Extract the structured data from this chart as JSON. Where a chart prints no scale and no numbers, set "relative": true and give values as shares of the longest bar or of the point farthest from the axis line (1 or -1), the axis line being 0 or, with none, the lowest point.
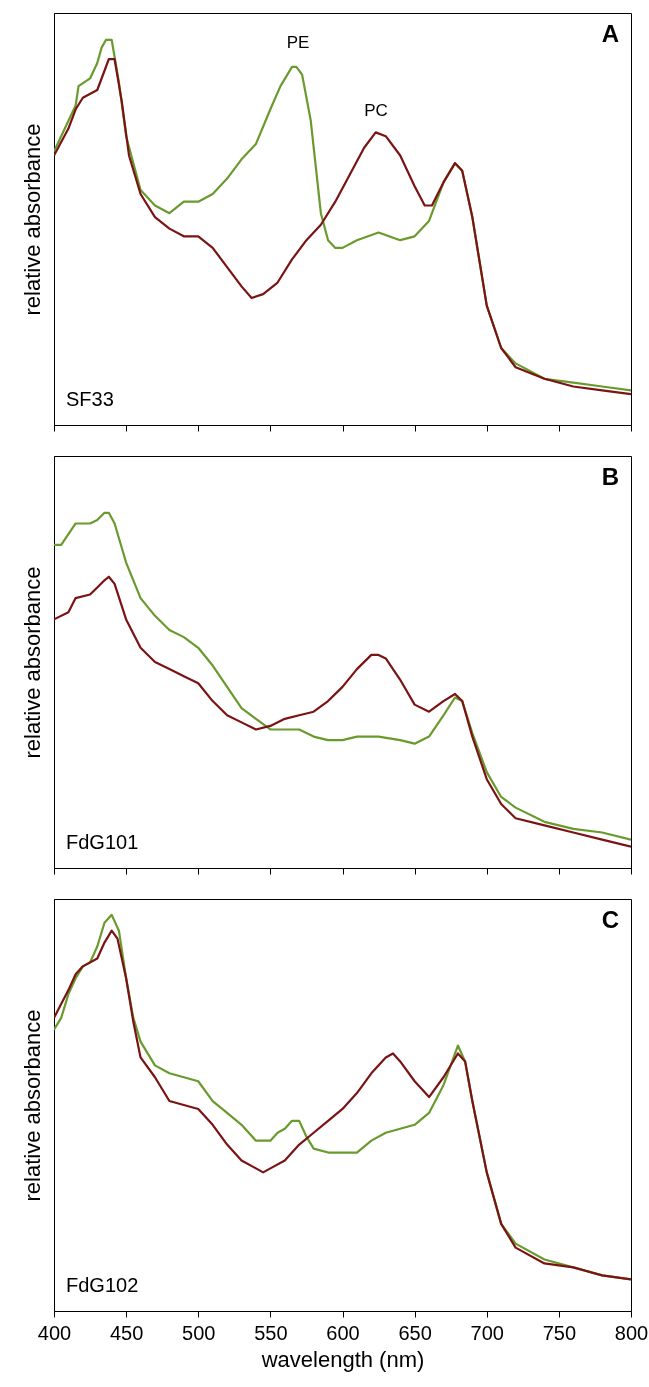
{
  "chart_data": [
    {
      "type": "line",
      "relative": true,
      "ylabel": "relative absorbance",
      "xlim": [
        400,
        800
      ],
      "xticks": [
        400,
        450,
        500,
        550,
        600,
        650,
        700,
        750,
        800
      ],
      "tick_labels": false,
      "legend": false,
      "grid": false,
      "marker": "none",
      "line_style": "solid",
      "annotations": [
        "A",
        "SF33",
        "PE",
        "PC"
      ],
      "series": [
        {
          "color": "#6a9a2e",
          "x": [
            400,
            410,
            415,
            417,
            425,
            430,
            433,
            436,
            440,
            445,
            450,
            460,
            470,
            480,
            490,
            500,
            510,
            520,
            530,
            540,
            550,
            557,
            565,
            568,
            572,
            578,
            585,
            590,
            595,
            600,
            610,
            625,
            640,
            650,
            660,
            670,
            678,
            683,
            690,
            700,
            710,
            720,
            740,
            760,
            780,
            800
          ],
          "values": [
            0.71,
            0.79,
            0.83,
            0.88,
            0.9,
            0.94,
            0.98,
            1.0,
            1.0,
            0.89,
            0.75,
            0.61,
            0.57,
            0.55,
            0.58,
            0.58,
            0.6,
            0.64,
            0.69,
            0.73,
            0.82,
            0.88,
            0.93,
            0.93,
            0.91,
            0.79,
            0.55,
            0.48,
            0.46,
            0.46,
            0.48,
            0.5,
            0.48,
            0.49,
            0.53,
            0.63,
            0.68,
            0.66,
            0.54,
            0.31,
            0.2,
            0.16,
            0.12,
            0.11,
            0.1,
            0.09
          ]
        },
        {
          "color": "#7a1414",
          "x": [
            400,
            410,
            415,
            420,
            430,
            435,
            438,
            442,
            447,
            452,
            460,
            470,
            480,
            490,
            500,
            510,
            520,
            530,
            537,
            545,
            555,
            565,
            575,
            585,
            595,
            605,
            615,
            623,
            630,
            640,
            650,
            657,
            662,
            670,
            678,
            683,
            690,
            700,
            710,
            720,
            740,
            760,
            780,
            800
          ],
          "values": [
            0.7,
            0.77,
            0.82,
            0.85,
            0.87,
            0.92,
            0.95,
            0.95,
            0.84,
            0.7,
            0.6,
            0.54,
            0.51,
            0.49,
            0.49,
            0.46,
            0.41,
            0.36,
            0.33,
            0.34,
            0.37,
            0.43,
            0.48,
            0.52,
            0.58,
            0.65,
            0.72,
            0.76,
            0.75,
            0.7,
            0.62,
            0.57,
            0.57,
            0.63,
            0.68,
            0.66,
            0.54,
            0.31,
            0.2,
            0.15,
            0.12,
            0.1,
            0.09,
            0.08
          ]
        }
      ]
    },
    {
      "type": "line",
      "relative": true,
      "ylabel": "relative absorbance",
      "xlim": [
        400,
        800
      ],
      "xticks": [
        400,
        450,
        500,
        550,
        600,
        650,
        700,
        750,
        800
      ],
      "tick_labels": false,
      "legend": false,
      "grid": false,
      "marker": "none",
      "line_style": "solid",
      "annotations": [
        "B",
        "FdG101"
      ],
      "series": [
        {
          "color": "#6a9a2e",
          "x": [
            400,
            405,
            410,
            415,
            425,
            430,
            435,
            438,
            442,
            450,
            460,
            470,
            480,
            490,
            500,
            510,
            520,
            530,
            540,
            550,
            560,
            570,
            580,
            590,
            600,
            610,
            625,
            640,
            650,
            660,
            670,
            678,
            683,
            690,
            700,
            710,
            720,
            740,
            760,
            780,
            800
          ],
          "values": [
            0.91,
            0.91,
            0.94,
            0.97,
            0.97,
            0.98,
            1.0,
            1.0,
            0.97,
            0.86,
            0.76,
            0.71,
            0.67,
            0.65,
            0.62,
            0.57,
            0.51,
            0.45,
            0.42,
            0.39,
            0.39,
            0.39,
            0.37,
            0.36,
            0.36,
            0.37,
            0.37,
            0.36,
            0.35,
            0.37,
            0.43,
            0.48,
            0.47,
            0.38,
            0.27,
            0.2,
            0.17,
            0.13,
            0.11,
            0.1,
            0.08
          ]
        },
        {
          "color": "#7a1414",
          "x": [
            400,
            410,
            415,
            425,
            430,
            435,
            438,
            442,
            450,
            460,
            470,
            480,
            490,
            500,
            510,
            520,
            530,
            540,
            550,
            560,
            570,
            580,
            590,
            600,
            610,
            620,
            625,
            630,
            640,
            650,
            660,
            670,
            678,
            683,
            690,
            700,
            710,
            720,
            740,
            760,
            780,
            800
          ],
          "values": [
            0.7,
            0.72,
            0.76,
            0.77,
            0.79,
            0.81,
            0.82,
            0.8,
            0.7,
            0.62,
            0.58,
            0.56,
            0.54,
            0.52,
            0.47,
            0.43,
            0.41,
            0.39,
            0.4,
            0.42,
            0.43,
            0.44,
            0.47,
            0.51,
            0.56,
            0.6,
            0.6,
            0.59,
            0.53,
            0.46,
            0.44,
            0.47,
            0.49,
            0.47,
            0.37,
            0.25,
            0.18,
            0.14,
            0.12,
            0.1,
            0.08,
            0.06
          ]
        }
      ]
    },
    {
      "type": "line",
      "relative": true,
      "xlabel": "wavelength (nm)",
      "ylabel": "relative absorbance",
      "xlim": [
        400,
        800
      ],
      "xticks": [
        400,
        450,
        500,
        550,
        600,
        650,
        700,
        750,
        800
      ],
      "tick_labels": "x",
      "legend": false,
      "grid": false,
      "marker": "none",
      "line_style": "solid",
      "annotations": [
        "C",
        "FdG102"
      ],
      "series": [
        {
          "color": "#6a9a2e",
          "x": [
            400,
            405,
            410,
            415,
            420,
            425,
            430,
            435,
            440,
            445,
            450,
            455,
            460,
            470,
            480,
            490,
            500,
            510,
            520,
            530,
            540,
            545,
            550,
            555,
            560,
            565,
            570,
            575,
            580,
            590,
            600,
            610,
            620,
            630,
            640,
            650,
            660,
            670,
            680,
            685,
            690,
            700,
            710,
            720,
            740,
            760,
            780,
            800
          ],
          "values": [
            0.71,
            0.74,
            0.8,
            0.84,
            0.87,
            0.88,
            0.92,
            0.98,
            1.0,
            0.96,
            0.84,
            0.74,
            0.68,
            0.62,
            0.6,
            0.59,
            0.58,
            0.53,
            0.5,
            0.47,
            0.43,
            0.43,
            0.43,
            0.45,
            0.46,
            0.48,
            0.48,
            0.44,
            0.41,
            0.4,
            0.4,
            0.4,
            0.43,
            0.45,
            0.46,
            0.47,
            0.5,
            0.57,
            0.67,
            0.63,
            0.53,
            0.35,
            0.22,
            0.17,
            0.13,
            0.11,
            0.09,
            0.08
          ]
        },
        {
          "color": "#7a1414",
          "x": [
            400,
            410,
            415,
            420,
            430,
            435,
            440,
            444,
            450,
            455,
            460,
            470,
            480,
            490,
            500,
            510,
            520,
            530,
            540,
            545,
            550,
            560,
            570,
            580,
            590,
            600,
            610,
            620,
            630,
            635,
            640,
            650,
            660,
            670,
            680,
            685,
            690,
            700,
            710,
            720,
            740,
            760,
            780,
            800
          ],
          "values": [
            0.74,
            0.81,
            0.85,
            0.87,
            0.89,
            0.93,
            0.96,
            0.94,
            0.84,
            0.73,
            0.64,
            0.59,
            0.53,
            0.52,
            0.51,
            0.47,
            0.42,
            0.38,
            0.36,
            0.35,
            0.36,
            0.38,
            0.42,
            0.45,
            0.48,
            0.51,
            0.55,
            0.6,
            0.64,
            0.65,
            0.63,
            0.58,
            0.54,
            0.59,
            0.65,
            0.63,
            0.53,
            0.35,
            0.22,
            0.16,
            0.12,
            0.11,
            0.09,
            0.08
          ]
        }
      ]
    }
  ]
}
